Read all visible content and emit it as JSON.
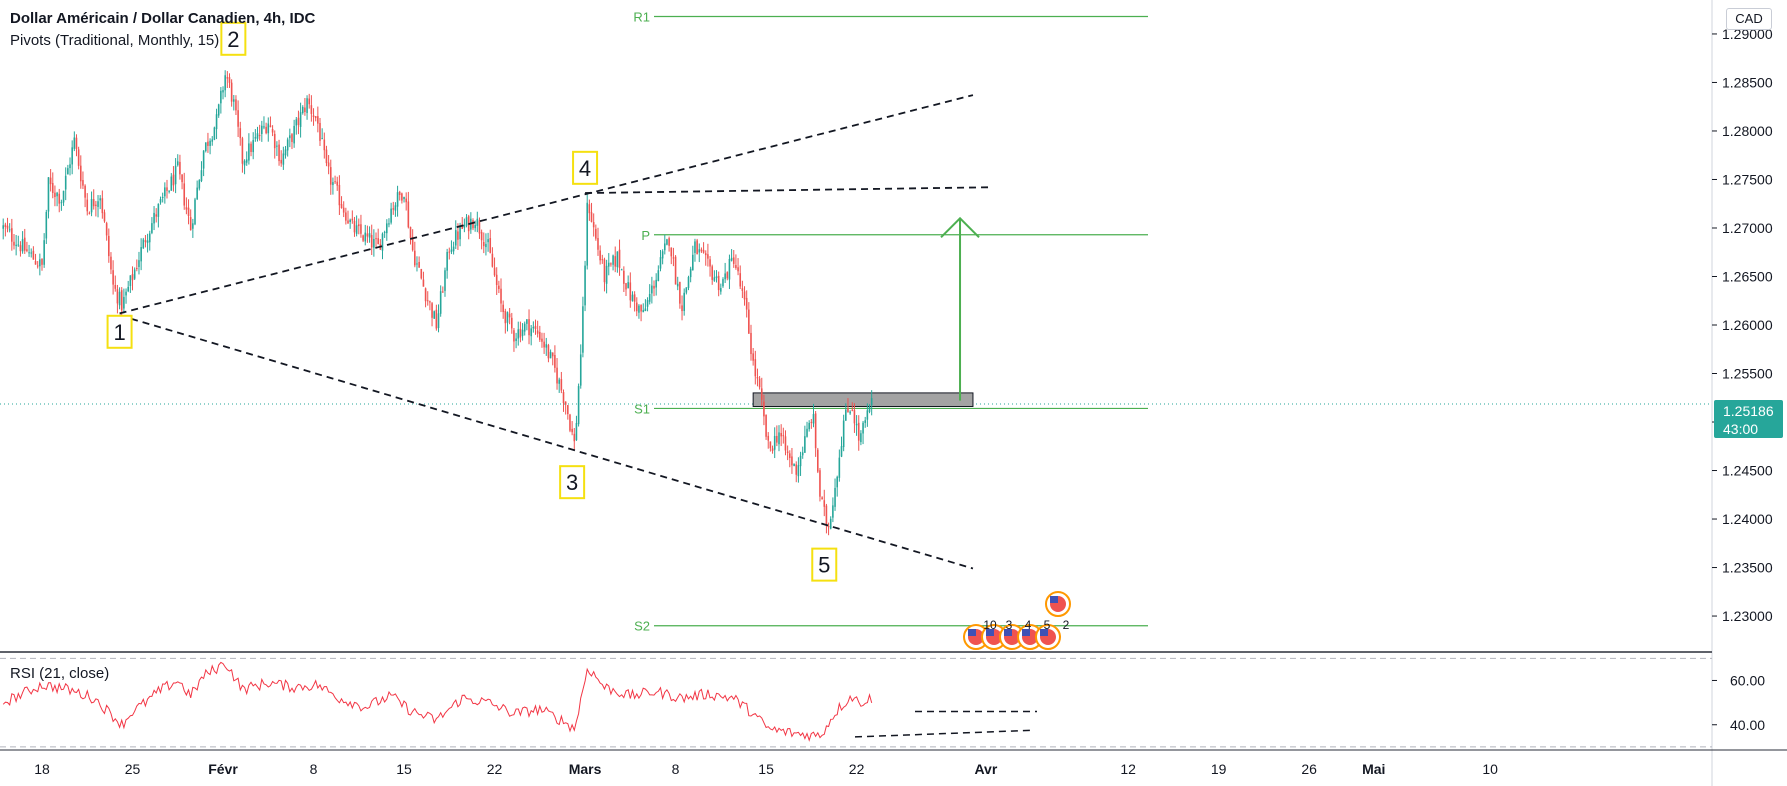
{
  "header": {
    "title": "Dollar Américain / Dollar Canadien, 4h, IDC",
    "pivots_label": "Pivots (Traditional, Monthly, 15)"
  },
  "currency": "CAD",
  "last_price": {
    "value": "1.25186",
    "countdown": "43:00"
  },
  "rsi_label": "RSI (21, close)",
  "colors": {
    "up": "#26a69a",
    "down": "#ef5350",
    "pivot": "#4caf50",
    "rsi": "#f23645",
    "accent": "#26a69a"
  },
  "chart_data": {
    "type": "candlestick",
    "instrument": "USD/CAD",
    "timeframe": "4h",
    "y_range": [
      1.2265,
      1.2935
    ],
    "y_ticks": [
      "1.23000",
      "1.23500",
      "1.24000",
      "1.24500",
      "1.25000",
      "1.25500",
      "1.26000",
      "1.26500",
      "1.27000",
      "1.27500",
      "1.28000",
      "1.28500",
      "1.29000"
    ],
    "x_ticks": [
      {
        "label": "18",
        "day": 0
      },
      {
        "label": "25",
        "day": 7
      },
      {
        "label": "Févr",
        "day": 14
      },
      {
        "label": "8",
        "day": 21
      },
      {
        "label": "15",
        "day": 28
      },
      {
        "label": "22",
        "day": 35
      },
      {
        "label": "Mars",
        "day": 42
      },
      {
        "label": "8",
        "day": 49
      },
      {
        "label": "15",
        "day": 56
      },
      {
        "label": "22",
        "day": 63
      },
      {
        "label": "Avr",
        "day": 73
      },
      {
        "label": "12",
        "day": 84
      },
      {
        "label": "19",
        "day": 91
      },
      {
        "label": "26",
        "day": 98
      },
      {
        "label": "Mai",
        "day": 103
      },
      {
        "label": "10",
        "day": 112
      }
    ],
    "price_anchors": [
      [
        -3,
        1.27
      ],
      [
        0,
        1.266
      ],
      [
        0.5,
        1.2745
      ],
      [
        1.5,
        1.273
      ],
      [
        2.5,
        1.279
      ],
      [
        3.5,
        1.272
      ],
      [
        4.5,
        1.2735
      ],
      [
        5.5,
        1.264
      ],
      [
        6.2,
        1.262
      ],
      [
        7.0,
        1.265
      ],
      [
        8.0,
        1.269
      ],
      [
        9.0,
        1.272
      ],
      [
        10.5,
        1.276
      ],
      [
        11.5,
        1.27
      ],
      [
        12.5,
        1.278
      ],
      [
        13.5,
        1.281
      ],
      [
        14.2,
        1.286
      ],
      [
        14.8,
        1.283
      ],
      [
        15.5,
        1.277
      ],
      [
        16.5,
        1.279
      ],
      [
        17.5,
        1.281
      ],
      [
        18.5,
        1.277
      ],
      [
        19.5,
        1.28
      ],
      [
        20.5,
        1.283
      ],
      [
        21.3,
        1.281
      ],
      [
        22.0,
        1.276
      ],
      [
        23.0,
        1.273
      ],
      [
        24.0,
        1.27
      ],
      [
        25.0,
        1.269
      ],
      [
        26.0,
        1.268
      ],
      [
        27.0,
        1.272
      ],
      [
        28.0,
        1.274
      ],
      [
        28.6,
        1.268
      ],
      [
        29.5,
        1.264
      ],
      [
        30.5,
        1.26
      ],
      [
        31.5,
        1.268
      ],
      [
        32.5,
        1.27
      ],
      [
        33.5,
        1.271
      ],
      [
        34.5,
        1.268
      ],
      [
        35.5,
        1.262
      ],
      [
        36.5,
        1.259
      ],
      [
        37.5,
        1.26
      ],
      [
        38.5,
        1.259
      ],
      [
        39.5,
        1.256
      ],
      [
        40.5,
        1.252
      ],
      [
        41.2,
        1.2475
      ],
      [
        41.8,
        1.26
      ],
      [
        42.2,
        1.273
      ],
      [
        42.8,
        1.269
      ],
      [
        43.5,
        1.265
      ],
      [
        44.5,
        1.267
      ],
      [
        45.5,
        1.263
      ],
      [
        46.5,
        1.261
      ],
      [
        47.5,
        1.265
      ],
      [
        48.5,
        1.269
      ],
      [
        49.0,
        1.265
      ],
      [
        49.5,
        1.262
      ],
      [
        50.5,
        1.268
      ],
      [
        51.5,
        1.266
      ],
      [
        52.5,
        1.264
      ],
      [
        53.5,
        1.267
      ],
      [
        54.5,
        1.261
      ],
      [
        55.0,
        1.256
      ],
      [
        55.5,
        1.253
      ],
      [
        56.2,
        1.247
      ],
      [
        57.0,
        1.249
      ],
      [
        57.5,
        1.247
      ],
      [
        58.3,
        1.245
      ],
      [
        59.0,
        1.248
      ],
      [
        59.6,
        1.251
      ],
      [
        60.2,
        1.242
      ],
      [
        60.8,
        1.239
      ],
      [
        61.4,
        1.244
      ],
      [
        62.0,
        1.25
      ],
      [
        62.6,
        1.252
      ],
      [
        63.2,
        1.248
      ],
      [
        63.8,
        1.2505
      ],
      [
        64.2,
        1.252
      ]
    ],
    "pivots": [
      {
        "label": "R1",
        "value": 1.2918
      },
      {
        "label": "P",
        "value": 1.2693
      },
      {
        "label": "S1",
        "value": 1.2514
      },
      {
        "label": "S2",
        "value": 1.229
      }
    ],
    "current_price": 1.25186,
    "wave_labels": [
      {
        "label": "1",
        "day": 6.0,
        "price": 1.2593
      },
      {
        "label": "2",
        "day": 14.8,
        "price": 1.2895
      },
      {
        "label": "3",
        "day": 41.0,
        "price": 1.2438
      },
      {
        "label": "4",
        "day": 42.0,
        "price": 1.2762
      },
      {
        "label": "5",
        "day": 60.5,
        "price": 1.2353
      }
    ],
    "trendlines": [
      {
        "from": [
          6.0,
          1.2612
        ],
        "to": [
          72.0,
          1.2837
        ]
      },
      {
        "from": [
          6.0,
          1.261
        ],
        "to": [
          72.0,
          1.2349
        ]
      },
      {
        "from": [
          42.0,
          1.2736
        ],
        "to": [
          73.5,
          1.2742
        ]
      }
    ],
    "zone": {
      "from_day": 55.0,
      "to_day": 72.0,
      "low": 1.2516,
      "high": 1.253
    },
    "arrow": {
      "day": 71.0,
      "from": 1.2522,
      "to": 1.271
    },
    "event_labels": [
      "10",
      "3",
      "4",
      "5",
      "2"
    ],
    "rsi": {
      "range": [
        29.5,
        71.5
      ],
      "ticks": [
        "60.00",
        "40.00"
      ],
      "anchors": [
        [
          -3,
          50
        ],
        [
          0,
          58
        ],
        [
          2,
          56
        ],
        [
          4,
          52
        ],
        [
          5.5,
          44
        ],
        [
          6.2,
          40
        ],
        [
          7,
          46
        ],
        [
          8,
          50
        ],
        [
          9,
          55
        ],
        [
          10.5,
          60
        ],
        [
          11.5,
          53
        ],
        [
          12.5,
          62
        ],
        [
          14.2,
          68
        ],
        [
          15.5,
          56
        ],
        [
          17.5,
          59
        ],
        [
          19.5,
          57
        ],
        [
          21.3,
          58
        ],
        [
          23,
          52
        ],
        [
          25,
          48
        ],
        [
          27,
          53
        ],
        [
          28.6,
          46
        ],
        [
          30.5,
          42
        ],
        [
          32.5,
          52
        ],
        [
          34.5,
          50
        ],
        [
          36.5,
          45
        ],
        [
          38.5,
          47
        ],
        [
          40.5,
          41
        ],
        [
          41.2,
          38
        ],
        [
          42.2,
          66
        ],
        [
          43.5,
          57
        ],
        [
          45.5,
          53
        ],
        [
          47.5,
          55
        ],
        [
          49.5,
          52
        ],
        [
          51.5,
          54
        ],
        [
          53.5,
          52
        ],
        [
          55,
          45
        ],
        [
          56.2,
          38
        ],
        [
          58.3,
          36
        ],
        [
          60.2,
          35
        ],
        [
          61.4,
          46
        ],
        [
          62.6,
          53
        ],
        [
          63.2,
          50
        ],
        [
          64.2,
          52
        ]
      ]
    }
  }
}
